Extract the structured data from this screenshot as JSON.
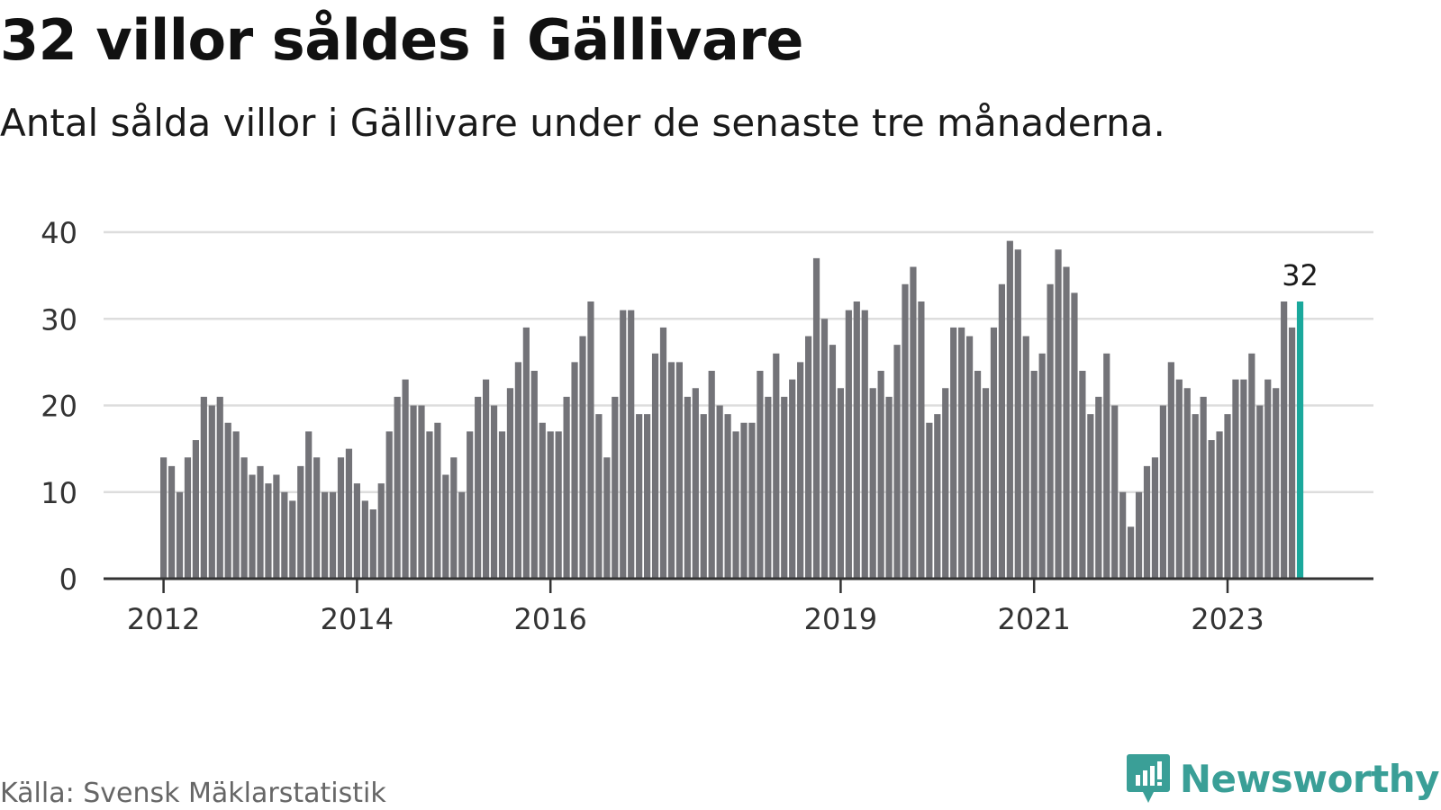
{
  "header": {
    "title": "32 villor såldes i Gällivare",
    "subtitle": "Antal sålda villor i Gällivare under de senaste tre månaderna."
  },
  "footer": {
    "source": "Källa: Svensk Mäklarstatistik",
    "brand": "Newsworthy",
    "brand_icon": "bar-chart-speech-bubble-icon"
  },
  "colors": {
    "bar": "#737378",
    "highlight": "#1aa89c",
    "grid": "#dddddd",
    "axis": "#333333",
    "brand": "#3a9f97"
  },
  "chart_data": {
    "type": "bar",
    "title": "32 villor såldes i Gällivare",
    "subtitle": "Antal sålda villor i Gällivare under de senaste tre månaderna.",
    "xlabel": "",
    "ylabel": "",
    "ylim": [
      0,
      40
    ],
    "yticks": [
      0,
      10,
      20,
      30,
      40
    ],
    "grid": true,
    "first_period": "2012-01",
    "values": [
      14,
      13,
      10,
      14,
      16,
      21,
      20,
      21,
      18,
      17,
      14,
      12,
      13,
      11,
      12,
      10,
      9,
      13,
      17,
      14,
      10,
      10,
      14,
      15,
      11,
      9,
      8,
      11,
      17,
      21,
      23,
      20,
      20,
      17,
      18,
      12,
      14,
      10,
      17,
      21,
      23,
      20,
      17,
      22,
      25,
      29,
      24,
      18,
      17,
      17,
      21,
      25,
      28,
      32,
      19,
      14,
      21,
      31,
      31,
      19,
      19,
      26,
      29,
      25,
      25,
      21,
      22,
      19,
      24,
      20,
      19,
      17,
      18,
      18,
      24,
      21,
      26,
      21,
      23,
      25,
      28,
      37,
      30,
      27,
      22,
      31,
      32,
      31,
      22,
      24,
      21,
      27,
      34,
      36,
      32,
      18,
      19,
      22,
      29,
      29,
      28,
      24,
      22,
      29,
      34,
      39,
      38,
      28,
      24,
      26,
      34,
      38,
      36,
      33,
      24,
      19,
      21,
      26,
      20,
      10,
      6,
      10,
      13,
      14,
      20,
      25,
      23,
      22,
      19,
      21,
      16,
      17,
      19,
      23,
      23,
      26,
      20,
      23,
      22,
      32,
      29,
      32
    ],
    "highlight_index": 141,
    "highlight_label": "32",
    "x_ticks": [
      {
        "label": "2012",
        "index": 0
      },
      {
        "label": "2014",
        "index": 24
      },
      {
        "label": "2016",
        "index": 48
      },
      {
        "label": "2019",
        "index": 84
      },
      {
        "label": "2021",
        "index": 108
      },
      {
        "label": "2023",
        "index": 132
      }
    ]
  }
}
